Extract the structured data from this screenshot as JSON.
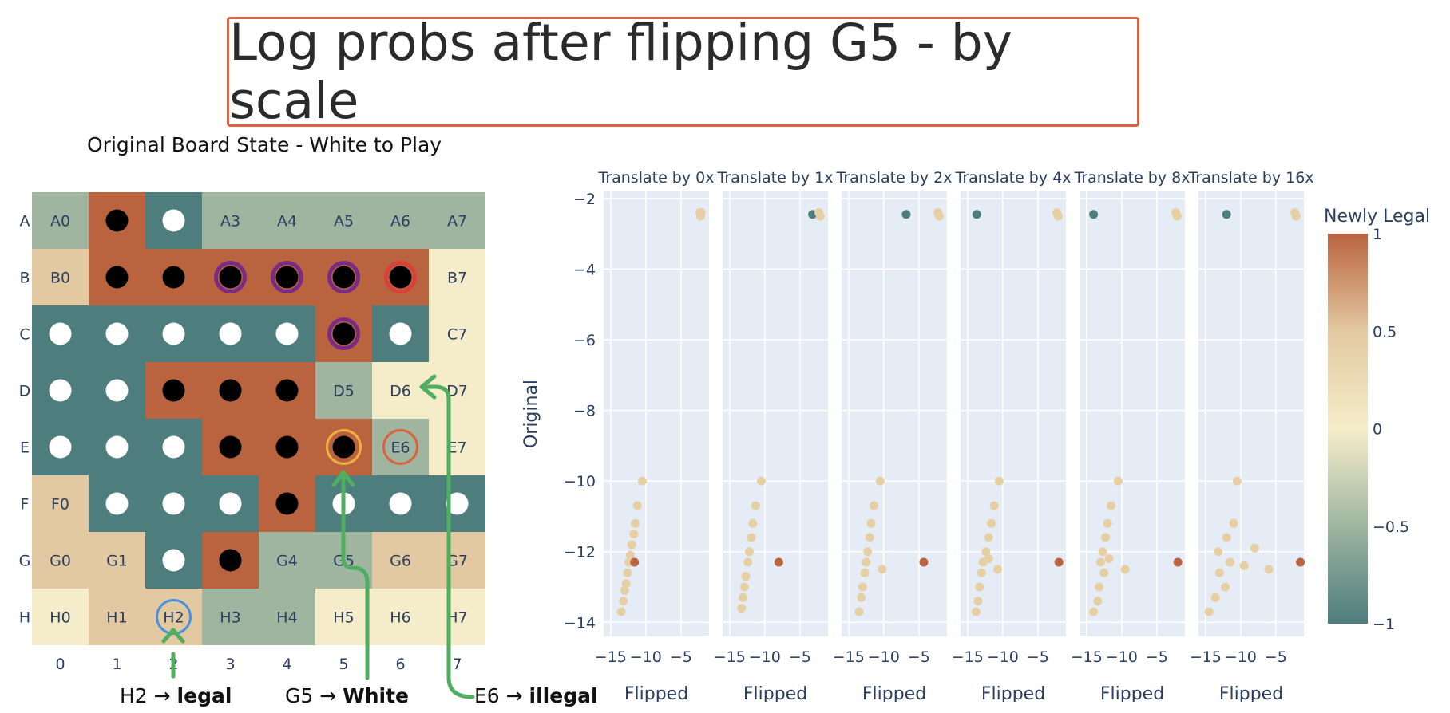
{
  "title": "Log probs after flipping G5 - by scale",
  "board": {
    "title": "Original Board State - White to Play",
    "row_labels": [
      "A",
      "B",
      "C",
      "D",
      "E",
      "F",
      "G",
      "H"
    ],
    "col_labels": [
      "0",
      "1",
      "2",
      "3",
      "4",
      "5",
      "6",
      "7"
    ],
    "colors": {
      "white_neg1": "#4e7d7e",
      "tan": "#e3c9a1",
      "cream": "#f5edc9",
      "brown": "#b9643f",
      "sage": "#9fb5a0",
      "tan2": "#d9b98d"
    },
    "cells": [
      [
        {
          "c": "sage",
          "t": "A0"
        },
        {
          "c": "brown",
          "p": "B"
        },
        {
          "c": "white_neg1",
          "p": "W"
        },
        {
          "c": "sage",
          "t": "A3"
        },
        {
          "c": "sage",
          "t": "A4"
        },
        {
          "c": "sage",
          "t": "A5"
        },
        {
          "c": "sage",
          "t": "A6"
        },
        {
          "c": "sage",
          "t": "A7"
        }
      ],
      [
        {
          "c": "tan",
          "t": "B0"
        },
        {
          "c": "brown",
          "p": "B"
        },
        {
          "c": "brown",
          "p": "B"
        },
        {
          "c": "brown",
          "p": "B",
          "ring": "purple"
        },
        {
          "c": "brown",
          "p": "B",
          "ring": "purple"
        },
        {
          "c": "brown",
          "p": "B",
          "ring": "purple"
        },
        {
          "c": "brown",
          "p": "B",
          "ring": "red"
        },
        {
          "c": "cream",
          "t": "B7"
        }
      ],
      [
        {
          "c": "white_neg1",
          "p": "W"
        },
        {
          "c": "white_neg1",
          "p": "W"
        },
        {
          "c": "white_neg1",
          "p": "W"
        },
        {
          "c": "white_neg1",
          "p": "W"
        },
        {
          "c": "white_neg1",
          "p": "W"
        },
        {
          "c": "brown",
          "p": "B",
          "ring": "purple"
        },
        {
          "c": "white_neg1",
          "p": "W"
        },
        {
          "c": "cream",
          "t": "C7"
        }
      ],
      [
        {
          "c": "white_neg1",
          "p": "W"
        },
        {
          "c": "white_neg1",
          "p": "W"
        },
        {
          "c": "brown",
          "p": "B"
        },
        {
          "c": "brown",
          "p": "B"
        },
        {
          "c": "brown",
          "p": "B"
        },
        {
          "c": "sage",
          "t": "D5"
        },
        {
          "c": "cream",
          "t": "D6"
        },
        {
          "c": "cream",
          "t": "D7"
        }
      ],
      [
        {
          "c": "white_neg1",
          "p": "W"
        },
        {
          "c": "white_neg1",
          "p": "W"
        },
        {
          "c": "white_neg1",
          "p": "W"
        },
        {
          "c": "brown",
          "p": "B"
        },
        {
          "c": "brown",
          "p": "B"
        },
        {
          "c": "brown",
          "p": "B",
          "ring": "orange"
        },
        {
          "c": "sage",
          "t": "E6",
          "ring": "redempty"
        },
        {
          "c": "cream",
          "t": "E7"
        }
      ],
      [
        {
          "c": "tan",
          "t": "F0"
        },
        {
          "c": "white_neg1",
          "p": "W"
        },
        {
          "c": "white_neg1",
          "p": "W"
        },
        {
          "c": "white_neg1",
          "p": "W"
        },
        {
          "c": "brown",
          "p": "B"
        },
        {
          "c": "white_neg1",
          "p": "W"
        },
        {
          "c": "white_neg1",
          "p": "W"
        },
        {
          "c": "white_neg1",
          "p": "W"
        }
      ],
      [
        {
          "c": "tan",
          "t": "G0"
        },
        {
          "c": "tan",
          "t": "G1"
        },
        {
          "c": "white_neg1",
          "p": "W"
        },
        {
          "c": "brown",
          "p": "B"
        },
        {
          "c": "sage",
          "t": "G4"
        },
        {
          "c": "sage",
          "t": "G5"
        },
        {
          "c": "tan",
          "t": "G6"
        },
        {
          "c": "tan",
          "t": "G7"
        }
      ],
      [
        {
          "c": "cream",
          "t": "H0"
        },
        {
          "c": "tan",
          "t": "H1"
        },
        {
          "c": "tan",
          "t": "H2",
          "ring": "blue"
        },
        {
          "c": "sage",
          "t": "H3"
        },
        {
          "c": "sage",
          "t": "H4"
        },
        {
          "c": "cream",
          "t": "H5"
        },
        {
          "c": "cream",
          "t": "H6"
        },
        {
          "c": "cream",
          "t": "H7"
        }
      ]
    ]
  },
  "annotations": {
    "h2_pre": "H2 → ",
    "h2_bold": "legal",
    "g5_pre": "G5 → ",
    "g5_bold": "White",
    "e6_pre": "E6 → ",
    "e6_bold": "illegal"
  },
  "chart_data": {
    "type": "scatter",
    "panel_titles": [
      "Translate by 0x",
      "Translate by 1x",
      "Translate by 2x",
      "Translate by 4x",
      "Translate by 8x",
      "Translate by 16x"
    ],
    "xlabel": "Flipped",
    "ylabel": "Original",
    "xlim": [
      -16,
      -1
    ],
    "ylim": [
      -14.4,
      -1.8
    ],
    "xticks": [
      -15,
      -10,
      -5
    ],
    "yticks": [
      -2,
      -4,
      -6,
      -8,
      -10,
      -12,
      -14
    ],
    "colorbar": {
      "title": "Newly Legal",
      "ticks": [
        1,
        0.5,
        0,
        -0.5,
        -1
      ],
      "colors": [
        "#b9643f",
        "#e3c9a1",
        "#f5edc9",
        "#9fb5a0",
        "#4e7d7e"
      ]
    },
    "series": [
      {
        "values": [
          {
            "x": -2.3,
            "y": -2.4,
            "g": 0
          },
          {
            "x": -2.2,
            "y": -2.5,
            "g": 0
          },
          {
            "x": -2.1,
            "y": -2.4,
            "g": 0
          },
          {
            "x": -10.5,
            "y": -10.0,
            "g": 0
          },
          {
            "x": -11.2,
            "y": -10.7,
            "g": 0
          },
          {
            "x": -11.5,
            "y": -11.2,
            "g": 0
          },
          {
            "x": -11.7,
            "y": -11.5,
            "g": 0
          },
          {
            "x": -12.0,
            "y": -11.8,
            "g": 0
          },
          {
            "x": -12.2,
            "y": -12.1,
            "g": 0
          },
          {
            "x": -12.4,
            "y": -12.3,
            "g": 0
          },
          {
            "x": -12.6,
            "y": -12.6,
            "g": 0
          },
          {
            "x": -12.8,
            "y": -12.9,
            "g": 0
          },
          {
            "x": -13.0,
            "y": -13.1,
            "g": 0
          },
          {
            "x": -13.2,
            "y": -13.4,
            "g": 0
          },
          {
            "x": -13.5,
            "y": -13.7,
            "g": 0
          },
          {
            "x": -11.6,
            "y": -12.3,
            "g": 1
          }
        ]
      },
      {
        "values": [
          {
            "x": -3.2,
            "y": -2.45,
            "g": -1
          },
          {
            "x": -2.3,
            "y": -2.4,
            "g": 0
          },
          {
            "x": -2.1,
            "y": -2.5,
            "g": 0
          },
          {
            "x": -10.5,
            "y": -10.0,
            "g": 0
          },
          {
            "x": -11.3,
            "y": -10.7,
            "g": 0
          },
          {
            "x": -11.7,
            "y": -11.2,
            "g": 0
          },
          {
            "x": -11.9,
            "y": -11.6,
            "g": 0
          },
          {
            "x": -12.2,
            "y": -12.0,
            "g": 0
          },
          {
            "x": -12.4,
            "y": -12.3,
            "g": 0
          },
          {
            "x": -12.7,
            "y": -12.7,
            "g": 0
          },
          {
            "x": -12.9,
            "y": -13.0,
            "g": 0
          },
          {
            "x": -13.1,
            "y": -13.3,
            "g": 0
          },
          {
            "x": -13.3,
            "y": -13.6,
            "g": 0
          },
          {
            "x": -8.0,
            "y": -12.3,
            "g": 1
          }
        ]
      },
      {
        "values": [
          {
            "x": -6.8,
            "y": -2.45,
            "g": -1
          },
          {
            "x": -2.3,
            "y": -2.4,
            "g": 0
          },
          {
            "x": -2.1,
            "y": -2.5,
            "g": 0
          },
          {
            "x": -10.5,
            "y": -10.0,
            "g": 0
          },
          {
            "x": -11.4,
            "y": -10.7,
            "g": 0
          },
          {
            "x": -11.8,
            "y": -11.2,
            "g": 0
          },
          {
            "x": -12.0,
            "y": -11.6,
            "g": 0
          },
          {
            "x": -12.3,
            "y": -12.0,
            "g": 0
          },
          {
            "x": -12.5,
            "y": -12.3,
            "g": 0
          },
          {
            "x": -12.7,
            "y": -12.6,
            "g": 0
          },
          {
            "x": -13.0,
            "y": -13.0,
            "g": 0
          },
          {
            "x": -13.2,
            "y": -13.3,
            "g": 0
          },
          {
            "x": -13.5,
            "y": -13.7,
            "g": 0
          },
          {
            "x": -10.2,
            "y": -12.5,
            "g": 0
          },
          {
            "x": -4.3,
            "y": -12.3,
            "g": 1
          }
        ]
      },
      {
        "values": [
          {
            "x": -13.7,
            "y": -2.45,
            "g": -1
          },
          {
            "x": -2.3,
            "y": -2.4,
            "g": 0
          },
          {
            "x": -2.1,
            "y": -2.5,
            "g": 0
          },
          {
            "x": -10.5,
            "y": -10.0,
            "g": 0
          },
          {
            "x": -11.2,
            "y": -10.7,
            "g": 0
          },
          {
            "x": -11.6,
            "y": -11.2,
            "g": 0
          },
          {
            "x": -12.0,
            "y": -11.6,
            "g": 0
          },
          {
            "x": -12.4,
            "y": -12.0,
            "g": 0
          },
          {
            "x": -12.8,
            "y": -12.3,
            "g": 0
          },
          {
            "x": -13.0,
            "y": -12.6,
            "g": 0
          },
          {
            "x": -13.3,
            "y": -13.0,
            "g": 0
          },
          {
            "x": -13.5,
            "y": -13.4,
            "g": 0
          },
          {
            "x": -13.8,
            "y": -13.7,
            "g": 0
          },
          {
            "x": -10.7,
            "y": -12.5,
            "g": 0
          },
          {
            "x": -12.0,
            "y": -12.2,
            "g": 0
          },
          {
            "x": -2.0,
            "y": -12.3,
            "g": 1
          }
        ]
      },
      {
        "values": [
          {
            "x": -14.0,
            "y": -2.45,
            "g": -1
          },
          {
            "x": -2.3,
            "y": -2.4,
            "g": 0
          },
          {
            "x": -2.1,
            "y": -2.5,
            "g": 0
          },
          {
            "x": -10.5,
            "y": -10.0,
            "g": 0
          },
          {
            "x": -11.5,
            "y": -10.7,
            "g": 0
          },
          {
            "x": -12.0,
            "y": -11.2,
            "g": 0
          },
          {
            "x": -12.3,
            "y": -11.6,
            "g": 0
          },
          {
            "x": -12.7,
            "y": -12.0,
            "g": 0
          },
          {
            "x": -13.0,
            "y": -12.3,
            "g": 0
          },
          {
            "x": -12.5,
            "y": -12.6,
            "g": 0
          },
          {
            "x": -13.2,
            "y": -13.0,
            "g": 0
          },
          {
            "x": -13.4,
            "y": -13.4,
            "g": 0
          },
          {
            "x": -14.0,
            "y": -13.7,
            "g": 0
          },
          {
            "x": -9.5,
            "y": -12.5,
            "g": 0
          },
          {
            "x": -11.8,
            "y": -12.2,
            "g": 0
          },
          {
            "x": -2.0,
            "y": -12.3,
            "g": 1
          }
        ]
      },
      {
        "values": [
          {
            "x": -12.0,
            "y": -2.45,
            "g": -1
          },
          {
            "x": -2.3,
            "y": -2.4,
            "g": 0
          },
          {
            "x": -2.1,
            "y": -2.5,
            "g": 0
          },
          {
            "x": -10.5,
            "y": -10.0,
            "g": 0
          },
          {
            "x": -11.0,
            "y": -11.2,
            "g": 0
          },
          {
            "x": -12.0,
            "y": -11.6,
            "g": 0
          },
          {
            "x": -13.2,
            "y": -12.0,
            "g": 0
          },
          {
            "x": -11.5,
            "y": -12.3,
            "g": 0
          },
          {
            "x": -13.0,
            "y": -12.6,
            "g": 0
          },
          {
            "x": -12.2,
            "y": -13.0,
            "g": 0
          },
          {
            "x": -13.6,
            "y": -13.3,
            "g": 0
          },
          {
            "x": -14.5,
            "y": -13.7,
            "g": 0
          },
          {
            "x": -8.0,
            "y": -11.9,
            "g": 0
          },
          {
            "x": -6.0,
            "y": -12.5,
            "g": 0
          },
          {
            "x": -9.5,
            "y": -12.4,
            "g": 0
          },
          {
            "x": -1.5,
            "y": -12.3,
            "g": 1
          }
        ]
      }
    ]
  }
}
